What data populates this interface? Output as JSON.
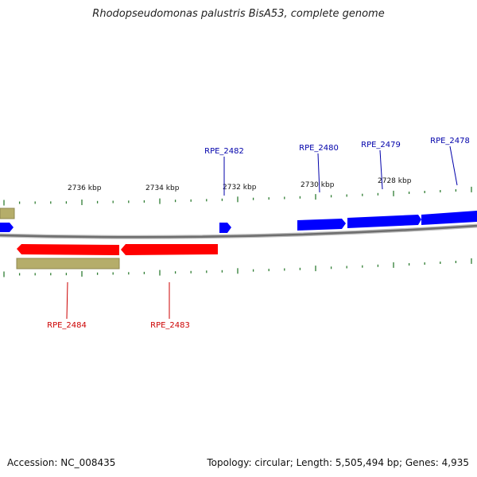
{
  "title": "Rhodopseudomonas palustris BisA53, complete genome",
  "footer": {
    "accession": "Accession: NC_008435",
    "stats": "Topology: circular; Length: 5,505,494 bp; Genes: 4,935"
  },
  "colors": {
    "forward_gene": "#0000ff",
    "reverse_gene": "#ff0000",
    "feature_band": "#b5ad6a",
    "ticks": "#2e7d32",
    "backbone": "#808080"
  },
  "scale_labels": [
    "2736 kbp",
    "2734 kbp",
    "2732 kbp",
    "2730 kbp",
    "2728 kbp"
  ],
  "forward_gene_labels": [
    "RPE_2482",
    "RPE_2480",
    "RPE_2479",
    "RPE_2478"
  ],
  "reverse_gene_labels": [
    "RPE_2484",
    "RPE_2483"
  ]
}
